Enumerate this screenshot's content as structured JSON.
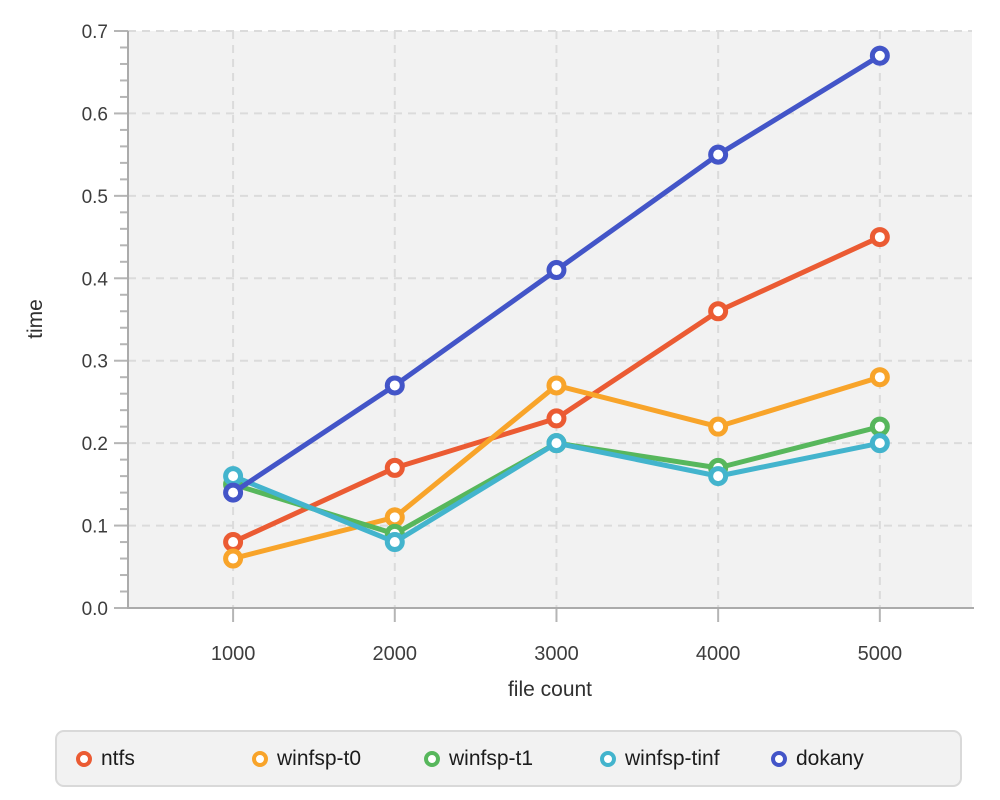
{
  "chart_data": {
    "type": "line",
    "x": [
      1000,
      2000,
      3000,
      4000,
      5000
    ],
    "series": [
      {
        "name": "ntfs",
        "color": "#EB5B33",
        "values": [
          0.08,
          0.17,
          0.23,
          0.36,
          0.45
        ]
      },
      {
        "name": "winfsp-t0",
        "color": "#F8A42A",
        "values": [
          0.06,
          0.11,
          0.27,
          0.22,
          0.28
        ]
      },
      {
        "name": "winfsp-t1",
        "color": "#57B75C",
        "values": [
          0.15,
          0.09,
          0.2,
          0.17,
          0.22
        ]
      },
      {
        "name": "winfsp-tinf",
        "color": "#43B4CD",
        "values": [
          0.16,
          0.08,
          0.2,
          0.16,
          0.2
        ]
      },
      {
        "name": "dokany",
        "color": "#4355C8",
        "values": [
          0.14,
          0.27,
          0.41,
          0.55,
          0.67
        ]
      }
    ],
    "title": "",
    "xlabel": "file count",
    "ylabel": "time",
    "xlim": [
      350,
      5570
    ],
    "ylim": [
      0,
      0.7
    ],
    "xtick_values": [
      1000,
      2000,
      3000,
      4000,
      5000
    ],
    "xtick_labels": [
      "1000",
      "2000",
      "3000",
      "4000",
      "5000"
    ],
    "ytick_values": [
      0.0,
      0.1,
      0.2,
      0.3,
      0.4,
      0.5,
      0.6,
      0.7
    ],
    "ytick_labels": [
      "0.0",
      "0.1",
      "0.2",
      "0.3",
      "0.4",
      "0.5",
      "0.6",
      "0.7"
    ],
    "y_minor_step": 0.02,
    "grid": true,
    "grid_style": "dashed",
    "legend_position": "bottom"
  },
  "colors": {
    "plot_background": "#F2F2F2",
    "gridline": "#DBDBDB",
    "axis_line": "#ABABAB",
    "tick_mark": "#B5B5B5",
    "tick_label": "#3D3D3D",
    "axis_title": "#303030",
    "legend_background": "#F2F2F2",
    "legend_border": "#D9D9D9",
    "legend_text": "#1C1C1C",
    "marker_fill": "#FFFFFF"
  }
}
